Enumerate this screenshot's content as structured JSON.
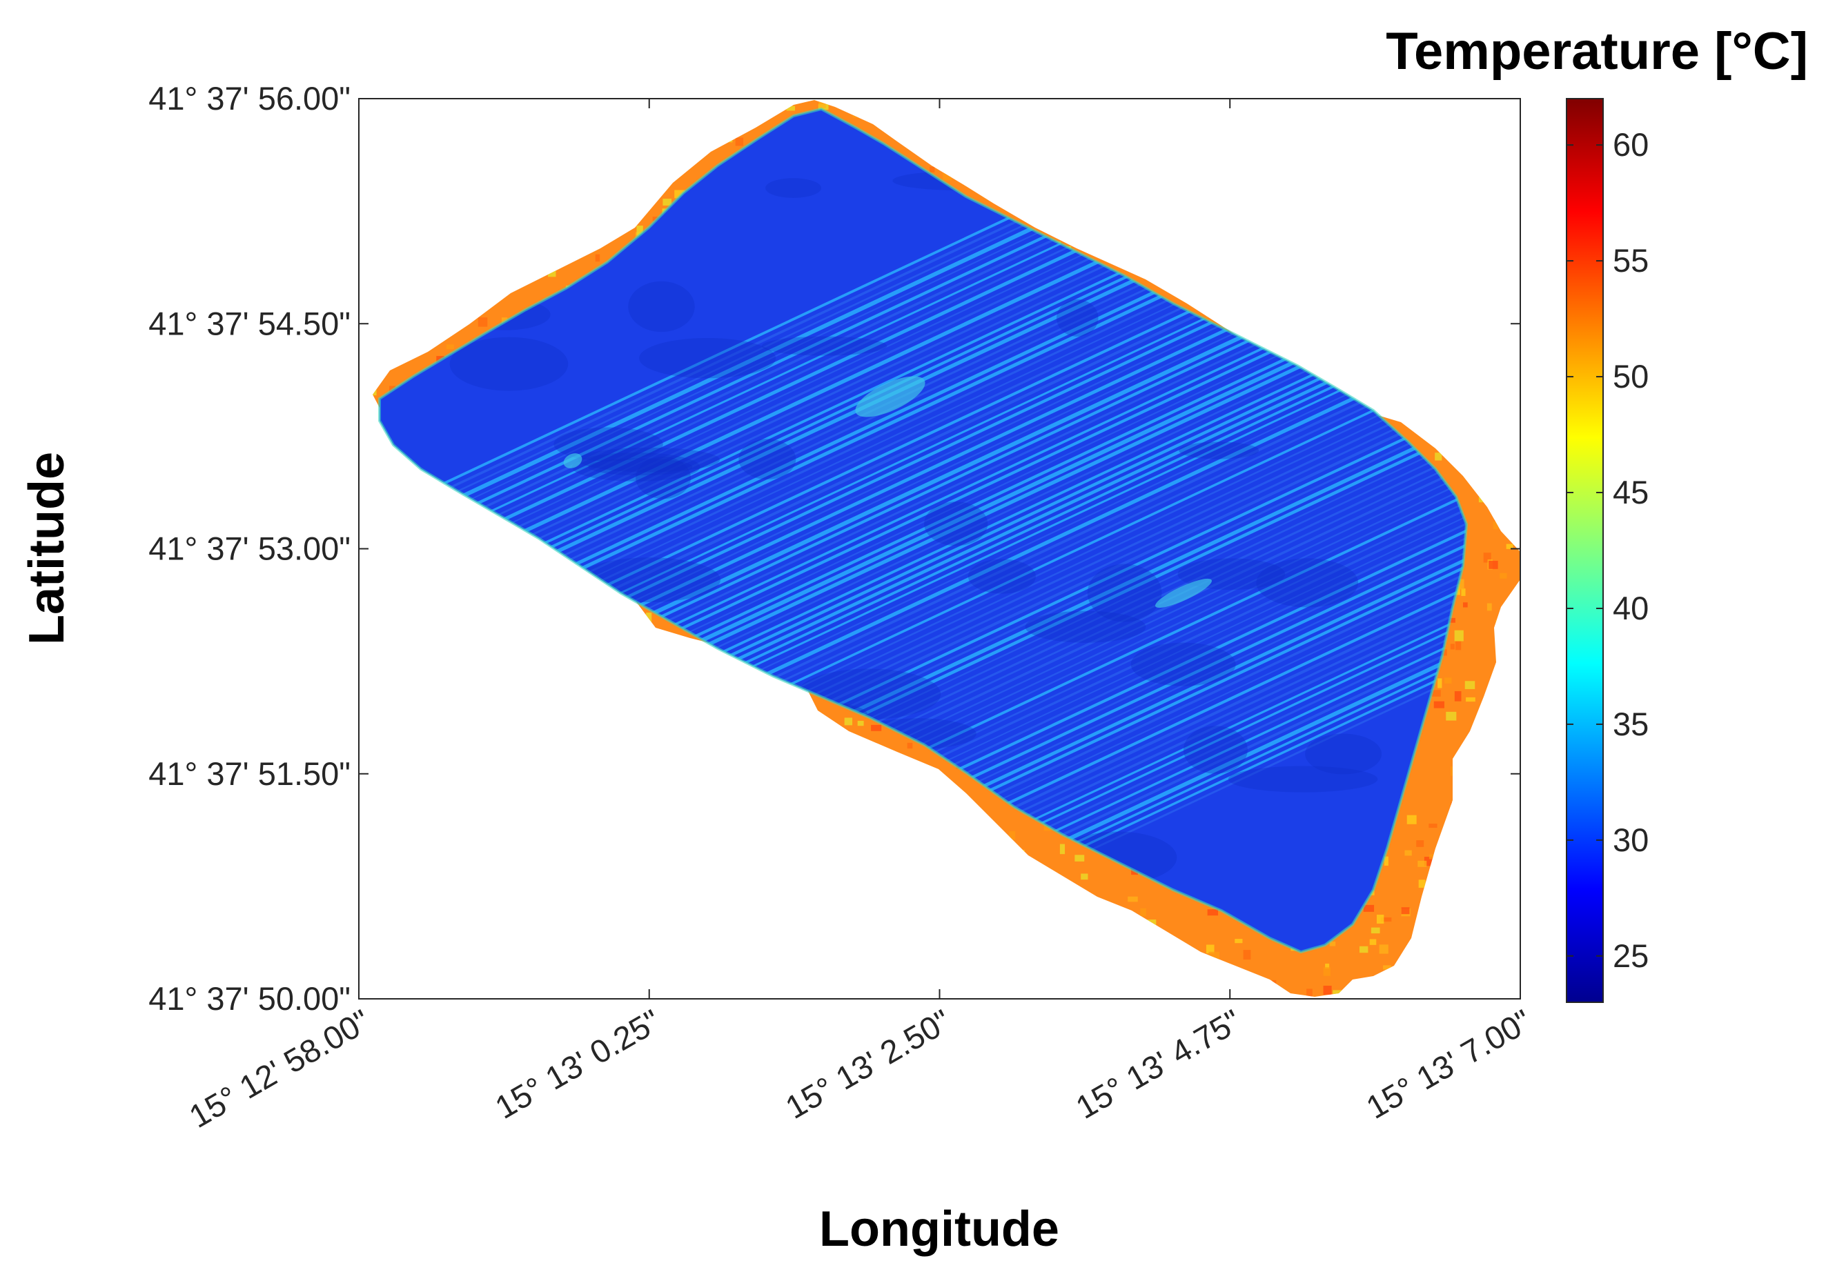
{
  "chart_data": {
    "type": "heatmap",
    "title": "",
    "xlabel": "Longitude",
    "ylabel": "Latitude",
    "x_ticks": [
      "15° 12' 58.00\"",
      "15° 13' 0.25\"",
      "15° 13' 2.50\"",
      "15° 13' 4.75\"",
      "15° 13' 7.00\""
    ],
    "y_ticks": [
      "41° 37' 56.00\"",
      "41° 37' 54.50\"",
      "41° 37' 53.00\"",
      "41° 37' 51.50\"",
      "41° 37' 50.00\""
    ],
    "colorbar": {
      "title": "Temperature [°C]",
      "ticks": [
        "25",
        "30",
        "35",
        "40",
        "45",
        "50",
        "55",
        "60"
      ],
      "range": [
        23,
        62
      ],
      "colormap": "jet"
    },
    "field": {
      "description_values": {
        "interior_temperature": 30,
        "border_temperature": 52,
        "stripe_temperature": 36
      }
    },
    "grid": false,
    "colors": {
      "interior": "#1a3fe6",
      "border": "#ff8c1a",
      "stripe": "#2aa7ff"
    }
  }
}
